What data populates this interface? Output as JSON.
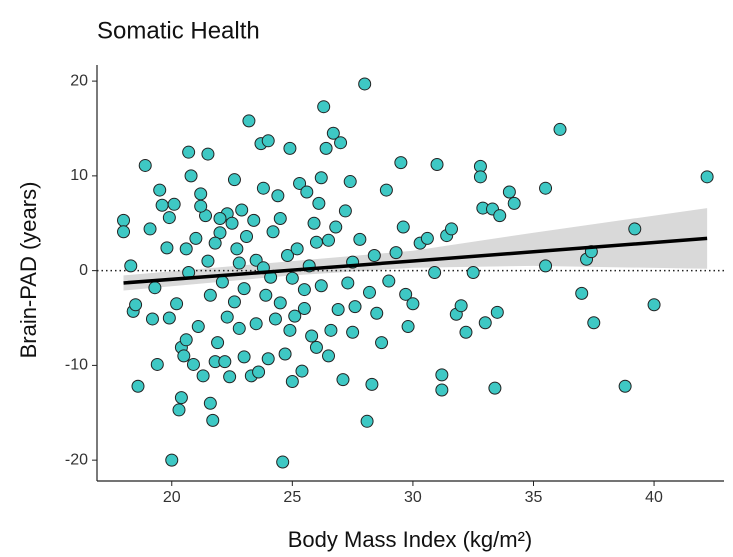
{
  "chart_data": {
    "type": "scatter",
    "title": "Somatic Health",
    "xlabel": "Body Mass Index (kg/m²)",
    "ylabel": "Brain-PAD (years)",
    "color": "#3ec8c4",
    "x": [
      18,
      18,
      18.3,
      18.4,
      18.5,
      18.6,
      18.9,
      19.1,
      19.2,
      19.4,
      19.5,
      19.6,
      19.3,
      19.8,
      19.9,
      19.9,
      20,
      20.1,
      20.2,
      20.3,
      20.4,
      20.4,
      20.5,
      20.6,
      20.7,
      20.8,
      20.9,
      20.7,
      20.6,
      21,
      21.1,
      21.2,
      21.3,
      21.5,
      21.6,
      21.7,
      21.8,
      21.4,
      21.5,
      21.6,
      21.9,
      22,
      22.1,
      22.2,
      22.3,
      22.4,
      22.5,
      22.6,
      22.7,
      22.8,
      22.9,
      23,
      23.1,
      23.2,
      23.3,
      23.4,
      23.5,
      23.6,
      23.7,
      23.8,
      23.9,
      24,
      24.1,
      24.2,
      24.3,
      24.4,
      24.5,
      24.6,
      24.7,
      24.8,
      24.9,
      25,
      25.1,
      25.2,
      25.3,
      25.4,
      25.5,
      25.6,
      25.7,
      25.8,
      25.9,
      26,
      26.1,
      26.2,
      26.3,
      26.4,
      26.5,
      26.6,
      26.7,
      26.8,
      26.9,
      27,
      27.1,
      27.2,
      27.3,
      27.4,
      27.5,
      27.6,
      27.8,
      28,
      28.1,
      28.2,
      28.3,
      28.4,
      28.5,
      28.7,
      28.9,
      29,
      29.3,
      29.5,
      29.6,
      29.7,
      29.8,
      30,
      30.3,
      30.6,
      30.9,
      31,
      31.2,
      31.2,
      31.4,
      31.6,
      31.8,
      32,
      32.2,
      32.5,
      32.8,
      32.8,
      32.9,
      33,
      33.3,
      33.4,
      33.5,
      33.6,
      34,
      34.2,
      35.5,
      35.5,
      36.1,
      37,
      37.2,
      37.4,
      37.5,
      38.8,
      39.2,
      40,
      42.2,
      21.2,
      22,
      22.8,
      23.5,
      24,
      24.5,
      25,
      25.5,
      26,
      26.5,
      22.3,
      23.8,
      24.9,
      26.2,
      27.5,
      22.6,
      21.8,
      23
    ],
    "values": [
      5.3,
      4.1,
      0.5,
      -4.3,
      -3.6,
      -12.2,
      11.1,
      4.4,
      -5.1,
      -9.9,
      8.5,
      6.9,
      -1.8,
      2.4,
      -5,
      5.6,
      -20,
      7,
      -3.5,
      -14.7,
      -13.4,
      -8.1,
      -9,
      -7.3,
      12.5,
      10,
      -9.9,
      -0.2,
      2.3,
      3.4,
      -5.9,
      8.1,
      -11.1,
      12.3,
      -14,
      -15.8,
      -9.6,
      5.8,
      1,
      -2.6,
      -7.6,
      4,
      -1.2,
      -9.6,
      6,
      -11.2,
      5,
      -3.3,
      2.3,
      -6.1,
      6.4,
      -9.1,
      3.6,
      15.8,
      -11.1,
      5.3,
      1.1,
      -10.7,
      13.4,
      8.7,
      -2.6,
      13.7,
      -0.7,
      4.1,
      -5.1,
      7.9,
      -3.4,
      -20.2,
      -8.8,
      1.6,
      12.9,
      -11.7,
      -4.8,
      2.3,
      9.2,
      -10.6,
      -2,
      8.3,
      0.5,
      -6.9,
      5,
      -8.1,
      7.1,
      -1.6,
      17.3,
      12.9,
      3.2,
      -6.3,
      14.5,
      4.6,
      -4.1,
      13.5,
      -11.5,
      6.3,
      -1.3,
      9.4,
      0.9,
      -3.8,
      3.3,
      19.7,
      -15.9,
      -2.3,
      -12,
      1.6,
      -4.5,
      -7.6,
      8.5,
      -1.1,
      1.9,
      11.4,
      4.6,
      -2.5,
      -5.9,
      -3.5,
      2.9,
      3.4,
      -0.2,
      11.2,
      -11,
      -12.6,
      3.7,
      4.4,
      -4.6,
      -3.7,
      -6.5,
      -0.2,
      11,
      9.9,
      6.6,
      -5.5,
      6.5,
      -12.4,
      -4.4,
      5.8,
      8.3,
      7.1,
      8.7,
      0.5,
      14.9,
      -2.4,
      1.2,
      2,
      -5.5,
      -12.2,
      4.4,
      -3.6,
      9.9,
      6.8,
      5.5,
      0.8,
      -5.6,
      -9.3,
      5.5,
      -0.8,
      -4,
      3,
      -9,
      -4.9,
      0.3,
      -6.3,
      9.8,
      -6.5,
      9.6,
      2.9,
      -1.9
    ],
    "fit": {
      "x": [
        18,
        25,
        30,
        35,
        42.2
      ],
      "y": [
        -1.3,
        0.05,
        1.02,
        1.99,
        3.4
      ],
      "lower": [
        -2.1,
        -0.5,
        0.3,
        0.5,
        0.2
      ],
      "upper": [
        -0.5,
        1.0,
        2.1,
        4.0,
        6.6
      ]
    },
    "hline": 0,
    "xlim": [
      16.9,
      42.9
    ],
    "ylim": [
      -22.2,
      21.7
    ],
    "xticks": [
      20,
      25,
      30,
      35,
      40
    ],
    "yticks": [
      -20,
      -10,
      0,
      10,
      20
    ]
  }
}
